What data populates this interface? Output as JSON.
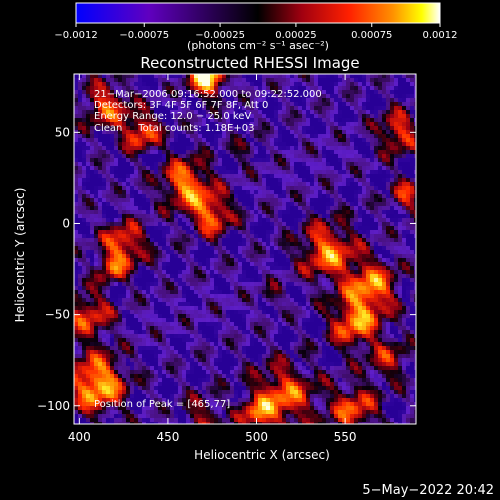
{
  "chart_data": {
    "type": "heatmap",
    "title": "Reconstructed RHESSI Image",
    "xlabel": "Heliocentric X (arcsec)",
    "ylabel": "Heliocentric Y (arcsec)",
    "xlim": [
      397,
      590
    ],
    "ylim": [
      -110,
      82
    ],
    "x_ticks": [
      400,
      450,
      500,
      550
    ],
    "y_ticks": [
      -100,
      -50,
      0,
      50
    ],
    "x_tick_labels": [
      "400",
      "450",
      "500",
      "550"
    ],
    "y_tick_labels": [
      "−100",
      "−50",
      "0",
      "50"
    ],
    "colorbar": {
      "range": [
        -0.0012,
        0.0012
      ],
      "tick_values": [
        -0.0012,
        -0.00075,
        -0.00025,
        0.00025,
        0.00075,
        0.0012
      ],
      "tick_labels": [
        "−0.0012",
        "−0.00075",
        "−0.00025",
        "0.00025",
        "0.00075",
        "0.0012"
      ],
      "units_label": "(photons cm⁻² s⁻¹ asec⁻²)",
      "colors": [
        "#0000ff",
        "#6000c0",
        "#000000",
        "#a00010",
        "#ff2000",
        "#ff9000",
        "#ffff00",
        "#ffffff"
      ]
    },
    "annotations": [
      "21−Mar−2006 09:16:52.000 to 09:22:52.000",
      "Detectors: 3F 4F 5F 6F 7F 8F, Att 0",
      "Energy Range: 12.0 − 25.0 keV",
      "Clean     Total counts: 1.18E+03"
    ],
    "peak_label": "Position of Peak = [465,77]",
    "peak": {
      "x": 465,
      "y": 77
    },
    "grid": false
  },
  "footer": {
    "timestamp": "5−May−2022 20:42"
  }
}
